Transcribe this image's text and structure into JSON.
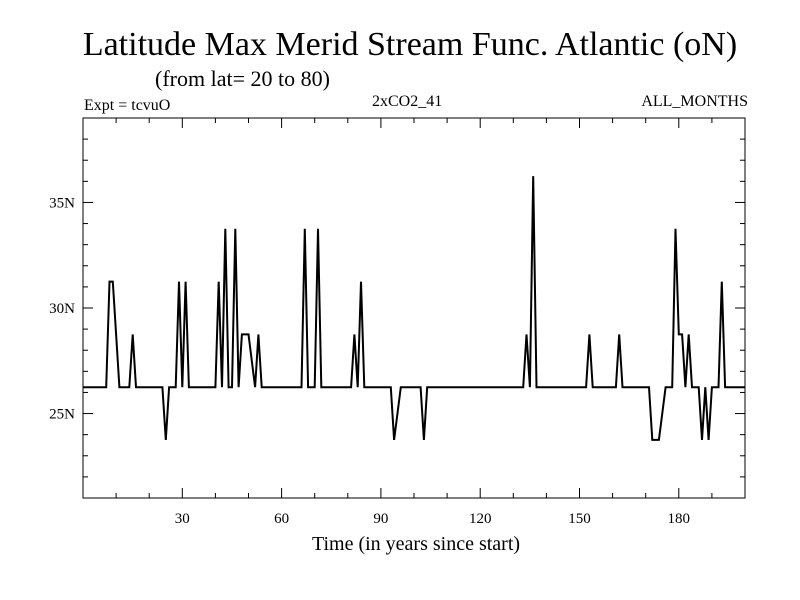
{
  "chart_data": {
    "type": "line",
    "title": "Latitude Max Merid Stream Func. Atlantic (oN)",
    "subtitle": "(from lat= 20 to 80)",
    "experiment": "Expt = tcvuO",
    "run": "2xCO2_41",
    "period": "ALL_MONTHS",
    "xlabel": "Time (in years since start)",
    "ylabel": "",
    "xlim": [
      0,
      200
    ],
    "ylim": [
      21,
      39
    ],
    "x_ticks": [
      30,
      60,
      90,
      120,
      150,
      180
    ],
    "x_tick_labels": [
      "30",
      "60",
      "90",
      "120",
      "150",
      "180"
    ],
    "y_ticks": [
      25,
      30,
      35
    ],
    "y_tick_labels": [
      "25N",
      "30N",
      "35N"
    ],
    "grid": false,
    "series": [
      {
        "x": [
          0,
          7,
          8,
          9,
          11,
          14,
          15,
          16,
          23,
          24,
          25,
          26,
          28,
          29,
          30,
          31,
          32,
          33,
          40,
          41,
          42,
          43,
          44,
          45,
          46,
          47,
          48,
          49,
          50,
          52,
          53,
          54,
          55,
          66,
          67,
          68,
          70,
          71,
          72,
          74,
          81,
          82,
          83,
          84,
          85,
          93,
          94,
          96,
          102,
          103,
          104,
          133,
          134,
          135,
          136,
          137,
          138,
          152,
          153,
          154,
          161,
          162,
          163,
          171,
          172,
          174,
          176,
          178,
          179,
          180,
          181,
          182,
          183,
          184,
          186,
          187,
          188,
          189,
          190,
          192,
          193,
          194,
          200
        ],
        "y": [
          26.25,
          26.25,
          31.25,
          31.25,
          26.25,
          26.25,
          28.75,
          26.25,
          26.25,
          26.25,
          23.75,
          26.25,
          26.25,
          31.25,
          26.25,
          31.25,
          26.25,
          26.25,
          26.25,
          31.25,
          26.25,
          33.75,
          26.25,
          26.25,
          33.75,
          26.25,
          28.75,
          28.75,
          28.75,
          26.25,
          28.75,
          26.25,
          26.25,
          26.25,
          33.75,
          26.25,
          26.25,
          33.75,
          26.25,
          26.25,
          26.25,
          28.75,
          26.25,
          31.25,
          26.25,
          26.25,
          23.75,
          26.25,
          26.25,
          23.75,
          26.25,
          26.25,
          28.75,
          26.25,
          36.25,
          26.25,
          26.25,
          26.25,
          28.75,
          26.25,
          26.25,
          28.75,
          26.25,
          26.25,
          23.75,
          23.75,
          26.25,
          26.25,
          33.75,
          28.75,
          28.75,
          26.25,
          28.75,
          26.25,
          26.25,
          23.75,
          26.25,
          23.75,
          26.25,
          26.25,
          31.25,
          26.25,
          26.25
        ]
      }
    ]
  }
}
